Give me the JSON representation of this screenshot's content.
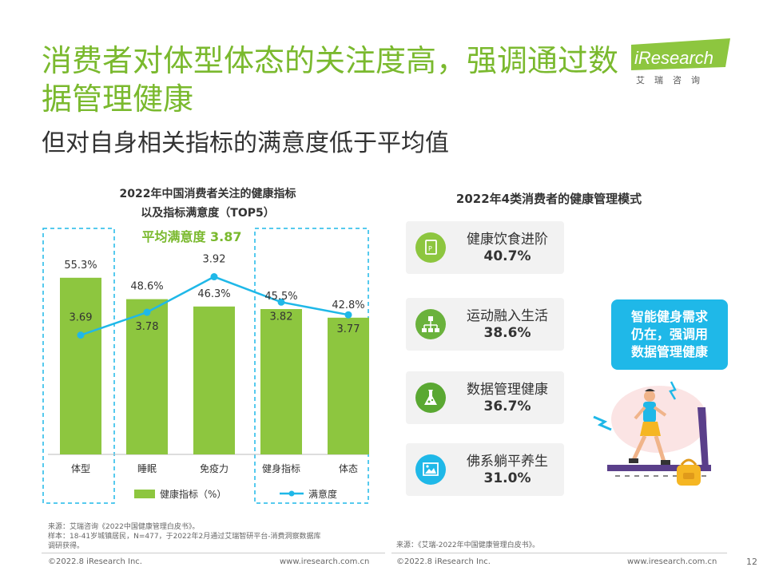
{
  "title": {
    "main": "消费者对体型体态的关注度高，强调通过数据管理健康",
    "sub": "但对自身相关指标的满意度低于平均值"
  },
  "logo": {
    "brand": "iResearch",
    "sub": "艾瑞咨询"
  },
  "colors": {
    "green": "#8dc63f",
    "blue": "#1fb8e8",
    "title_green": "#7ab92e"
  },
  "chart_data": {
    "type": "bar",
    "title_line1": "2022年中国消费者关注的健康指标",
    "title_line2": "以及指标满意度（TOP5）",
    "annotation": "平均满意度 3.87",
    "categories": [
      "体型",
      "睡眠",
      "免疫力",
      "健身指标",
      "体态"
    ],
    "series": [
      {
        "name": "健康指标（%）",
        "type": "bar",
        "values": [
          55.3,
          48.6,
          46.3,
          45.5,
          42.8
        ],
        "labels": [
          "55.3%",
          "48.6%",
          "46.3%",
          "45.5%",
          "42.8%"
        ]
      },
      {
        "name": "满意度",
        "type": "line",
        "values": [
          3.69,
          3.78,
          3.92,
          3.82,
          3.77
        ],
        "labels": [
          "3.69",
          "3.78",
          "3.92",
          "3.82",
          "3.77"
        ]
      }
    ],
    "bar_ylim": [
      0,
      70
    ],
    "line_ylim": [
      3.5,
      3.95
    ]
  },
  "right_panel": {
    "title": "2022年4类消费者的健康管理模式",
    "cards": [
      {
        "label": "健康饮食进阶",
        "value": "40.7%",
        "icon": "document-icon",
        "color": "#8dc63f"
      },
      {
        "label": "运动融入生活",
        "value": "38.6%",
        "icon": "hierarchy-icon",
        "color": "#6ab23c"
      },
      {
        "label": "数据管理健康",
        "value": "36.7%",
        "icon": "flask-icon",
        "color": "#5aa832"
      },
      {
        "label": "佛系躺平养生",
        "value": "31.0%",
        "icon": "image-icon",
        "color": "#1fb8e8"
      }
    ],
    "callout": [
      "智能健身需求",
      "仍在，强调用",
      "数据管理健康"
    ]
  },
  "notes": {
    "left": [
      "来源：艾瑞咨询《2022中国健康管理白皮书》。",
      "样本：18-41岁城镇居民，N=477，于2022年2月通过艾瑞智研平台-消费洞察数据库",
      "调研获得。"
    ],
    "right": "来源：《艾瑞-2022年中国健康管理白皮书》。"
  },
  "footer": {
    "copyright_left": "©2022.8 iResearch Inc.",
    "url_left": "www.iresearch.com.cn",
    "copyright_right": "©2022.8 iResearch Inc.",
    "url_right": "www.iresearch.com.cn",
    "page": "12"
  }
}
